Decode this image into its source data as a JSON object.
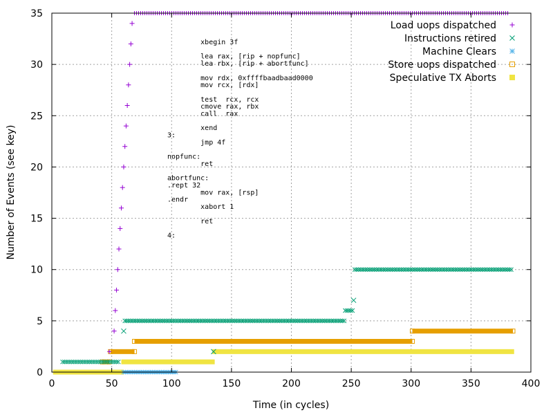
{
  "chart_data": {
    "type": "scatter",
    "xlabel": "Time (in cycles)",
    "ylabel": "Number of Events (see key)",
    "xlim": [
      0,
      400
    ],
    "ylim": [
      0,
      35
    ],
    "xticks": [
      "0",
      "50",
      "100",
      "150",
      "200",
      "250",
      "300",
      "350",
      "400"
    ],
    "yticks": [
      "0",
      "5",
      "10",
      "15",
      "20",
      "25",
      "30",
      "35"
    ],
    "grid": true,
    "legend_position": "top-right",
    "colors": {
      "load": "#9400d3",
      "retired": "#009e73",
      "clears": "#56b4e9",
      "store": "#e69f00",
      "aborts": "#f0e442"
    },
    "series": [
      {
        "name": "Load uops dispatched",
        "marker": "plus",
        "color": "#9400d3",
        "segments": [
          [
            48,
            49,
            2
          ],
          [
            69,
            382,
            35
          ]
        ],
        "points": [
          [
            52,
            4
          ],
          [
            53,
            6
          ],
          [
            54,
            8
          ],
          [
            55,
            10
          ],
          [
            56,
            12
          ],
          [
            57,
            14
          ],
          [
            58,
            16
          ],
          [
            59,
            18
          ],
          [
            60,
            20
          ],
          [
            61,
            22
          ],
          [
            62,
            24
          ],
          [
            63,
            26
          ],
          [
            64,
            28
          ],
          [
            65,
            30
          ],
          [
            66,
            32
          ],
          [
            67,
            34
          ]
        ]
      },
      {
        "name": "Instructions retired",
        "marker": "cross",
        "color": "#009e73",
        "segments": [
          [
            9,
            57,
            1
          ],
          [
            61,
            245,
            5
          ],
          [
            245,
            251,
            6
          ],
          [
            253,
            385,
            10
          ]
        ],
        "points": [
          [
            60,
            4
          ],
          [
            252,
            7
          ],
          [
            135,
            2
          ]
        ]
      },
      {
        "name": "Machine Clears",
        "marker": "star",
        "color": "#56b4e9",
        "segments": [
          [
            60,
            105,
            0
          ]
        ],
        "points": []
      },
      {
        "name": "Store uops dispatched",
        "marker": "square",
        "color": "#e69f00",
        "segments": [
          [
            42,
            48,
            1
          ],
          [
            49,
            69,
            2
          ],
          [
            69,
            301,
            3
          ],
          [
            301,
            385,
            4
          ]
        ],
        "points": []
      },
      {
        "name": "Speculative TX Aborts",
        "marker": "filled-square",
        "color": "#f0e442",
        "segments": [
          [
            1,
            60,
            0
          ],
          [
            58,
            136,
            1
          ],
          [
            134,
            386,
            2
          ]
        ],
        "points": []
      }
    ],
    "annotation": [
      "        xbegin 3f",
      "",
      "        lea rax, [rip + nopfunc]",
      "        lea rbx, [rip + abortfunc]",
      "",
      "        mov rdx, 0xffffbaadbaad0000",
      "        mov rcx, [rdx]",
      "",
      "        test  rcx, rcx",
      "        cmove rax, rbx",
      "        call  rax",
      "",
      "        xend",
      "3:",
      "        jmp 4f",
      "",
      "nopfunc:",
      "        ret",
      "",
      "abortfunc:",
      ".rept 32",
      "        mov rax, [rsp]",
      ".endr",
      "        xabort 1",
      "",
      "        ret",
      "",
      "4:"
    ]
  }
}
